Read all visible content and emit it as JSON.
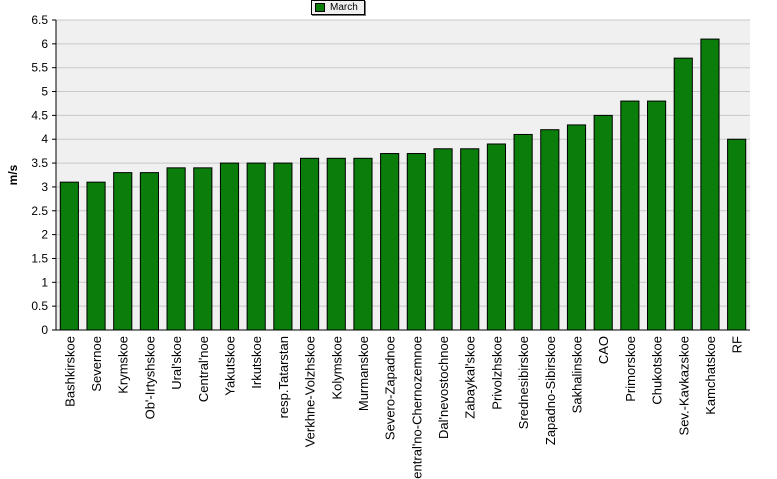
{
  "chart_data": {
    "type": "bar",
    "title": "",
    "xlabel": "",
    "ylabel": "m/s",
    "ylim": [
      0,
      6.5
    ],
    "yticks": [
      "0",
      "0.5",
      "1",
      "1.5",
      "2",
      "2.5",
      "3",
      "3.5",
      "4",
      "4.5",
      "5",
      "5.5",
      "6",
      "6.5"
    ],
    "grid": "horizontal",
    "legend_position": "top-center",
    "colors": {
      "bar": "#0a7d0a",
      "bar_edge": "#000000",
      "plot_bg": "#f0f0f0",
      "grid": "#c8c8c8"
    },
    "categories": [
      "Bashkirskoe",
      "Severnoe",
      "Krymskoe",
      "Ob'-Irtyshskoe",
      "Ural'skoe",
      "Central'noe",
      "Yakutskoe",
      "Irkutskoe",
      "resp.Tatarstan",
      "Verkhne-Volzhskoe",
      "Kolymskoe",
      "Murmanskoe",
      "Severo-Zapadnoe",
      "Central'no-Chernozemnoe",
      "Dal'nevostochnoe",
      "Zabaykal'skoe",
      "Privolzhskoe",
      "Srednesibirskoe",
      "Zapadno-Sibirskoe",
      "Sakhalinskoe",
      "CAO",
      "Primorskoe",
      "Chukotskoe",
      "Sev.-Kavkazskoe",
      "Kamchatskoe",
      "RF"
    ],
    "series": [
      {
        "name": "March",
        "values": [
          3.1,
          3.1,
          3.3,
          3.3,
          3.4,
          3.4,
          3.5,
          3.5,
          3.5,
          3.6,
          3.6,
          3.6,
          3.7,
          3.7,
          3.8,
          3.8,
          3.9,
          4.1,
          4.2,
          4.3,
          4.5,
          4.8,
          4.8,
          5.7,
          6.1,
          4.0
        ]
      }
    ]
  }
}
